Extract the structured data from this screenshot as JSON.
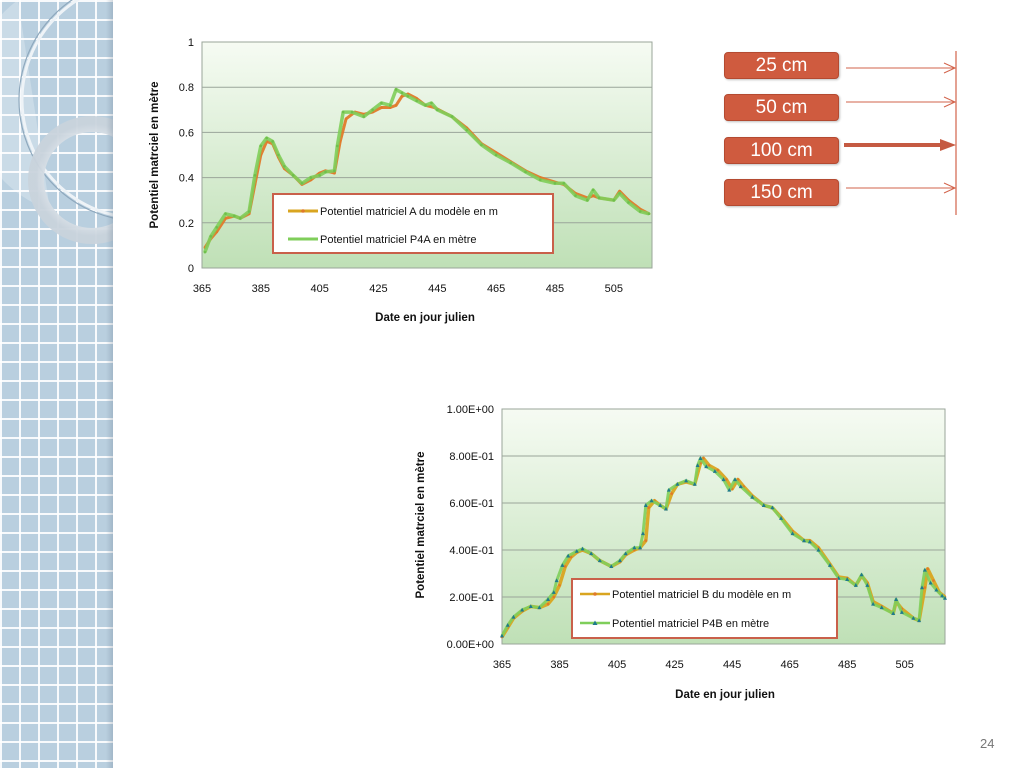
{
  "slide": {
    "page_number": "24",
    "accent_color": "#cf5b3f"
  },
  "depth_labels": [
    "25 cm",
    "50 cm",
    "100 cm",
    "150 cm"
  ],
  "highlighted_depth": "100 cm",
  "chart_data": [
    {
      "type": "line",
      "title": "",
      "xlabel": "Date en jour julien",
      "ylabel": "Potentiel matrciel en mètre",
      "xlim": [
        365,
        518
      ],
      "ylim": [
        0,
        1
      ],
      "xticks": [
        365,
        385,
        405,
        425,
        445,
        465,
        485,
        505
      ],
      "xtick_labels": [
        "365",
        "385",
        "405",
        "425",
        "445",
        "465",
        "485",
        "505"
      ],
      "yticks": [
        0,
        0.2,
        0.4,
        0.6,
        0.8,
        1
      ],
      "ytick_labels": [
        "0",
        "0.2",
        "0.4",
        "0.6",
        "0.8",
        "1"
      ],
      "grid": true,
      "legend_position": "center-bottom",
      "series": [
        {
          "name": "Potentiel matriciel A du modèle en m",
          "color": "#e07a2a",
          "x": [
            366,
            368,
            370,
            373,
            376,
            378,
            381,
            383,
            385,
            387,
            389,
            391,
            393,
            396,
            399,
            402,
            405,
            407,
            410,
            412,
            414,
            417,
            420,
            423,
            426,
            429,
            431,
            433,
            435,
            438,
            441,
            444,
            447,
            450,
            455,
            460,
            465,
            470,
            475,
            480,
            485,
            488,
            492,
            496,
            498,
            500,
            505,
            507,
            510,
            514,
            517
          ],
          "y": [
            0.09,
            0.13,
            0.16,
            0.22,
            0.23,
            0.22,
            0.24,
            0.37,
            0.5,
            0.56,
            0.55,
            0.49,
            0.44,
            0.41,
            0.37,
            0.39,
            0.42,
            0.43,
            0.42,
            0.56,
            0.66,
            0.69,
            0.68,
            0.69,
            0.71,
            0.71,
            0.72,
            0.76,
            0.77,
            0.75,
            0.72,
            0.71,
            0.69,
            0.67,
            0.62,
            0.55,
            0.51,
            0.47,
            0.43,
            0.4,
            0.38,
            0.37,
            0.33,
            0.31,
            0.32,
            0.31,
            0.3,
            0.34,
            0.3,
            0.26,
            0.24
          ]
        },
        {
          "name": "Potentiel matriciel P4A en mètre",
          "color": "#7fce5a",
          "x": [
            366,
            368,
            370,
            373,
            376,
            378,
            381,
            383,
            385,
            387,
            389,
            391,
            393,
            396,
            399,
            402,
            405,
            407,
            410,
            411,
            413,
            416,
            420,
            423,
            426,
            429,
            431,
            433,
            435,
            438,
            441,
            443,
            445,
            450,
            455,
            460,
            465,
            470,
            475,
            480,
            485,
            488,
            492,
            496,
            498,
            500,
            505,
            507,
            510,
            514,
            517
          ],
          "y": [
            0.07,
            0.14,
            0.18,
            0.24,
            0.23,
            0.22,
            0.25,
            0.41,
            0.54,
            0.575,
            0.56,
            0.5,
            0.45,
            0.41,
            0.375,
            0.4,
            0.41,
            0.425,
            0.43,
            0.54,
            0.69,
            0.69,
            0.67,
            0.7,
            0.73,
            0.72,
            0.79,
            0.775,
            0.76,
            0.74,
            0.72,
            0.73,
            0.7,
            0.67,
            0.61,
            0.545,
            0.5,
            0.465,
            0.425,
            0.39,
            0.375,
            0.375,
            0.32,
            0.3,
            0.345,
            0.31,
            0.3,
            0.33,
            0.29,
            0.25,
            0.24
          ]
        }
      ]
    },
    {
      "type": "line",
      "title": "",
      "xlabel": "Date en jour julien",
      "ylabel": "Potentiel matrciel en mètre",
      "xlim": [
        365,
        519
      ],
      "ylim": [
        0,
        1
      ],
      "xticks": [
        365,
        385,
        405,
        425,
        445,
        465,
        485,
        505
      ],
      "xtick_labels": [
        "365",
        "385",
        "405",
        "425",
        "445",
        "465",
        "485",
        "505"
      ],
      "yticks": [
        0,
        0.2,
        0.4,
        0.6,
        0.8,
        1
      ],
      "ytick_labels": [
        "0.00E+00",
        "2.00E-01",
        "4.00E-01",
        "6.00E-01",
        "8.00E-01",
        "1.00E+00"
      ],
      "grid": true,
      "legend_position": "center-bottom",
      "series": [
        {
          "name": "Potentiel matriciel B du modèle en m",
          "color": "#d9a520",
          "marker": "circle",
          "x": [
            365,
            367,
            369,
            372,
            375,
            378,
            381,
            383,
            385,
            387,
            389,
            391,
            393,
            396,
            399,
            403,
            406,
            408,
            411,
            413,
            415,
            416,
            418,
            420,
            422,
            424,
            426,
            429,
            432,
            434,
            435,
            437,
            440,
            443,
            445,
            447,
            449,
            452,
            456,
            459,
            462,
            466,
            470,
            472,
            475,
            479,
            482,
            485,
            488,
            490,
            492,
            494,
            497,
            501,
            502,
            504,
            508,
            510,
            512,
            513,
            515,
            517,
            519
          ],
          "y": [
            0.03,
            0.07,
            0.11,
            0.14,
            0.16,
            0.155,
            0.17,
            0.2,
            0.25,
            0.33,
            0.37,
            0.39,
            0.4,
            0.385,
            0.355,
            0.33,
            0.35,
            0.38,
            0.4,
            0.41,
            0.44,
            0.58,
            0.61,
            0.59,
            0.575,
            0.64,
            0.68,
            0.69,
            0.68,
            0.77,
            0.79,
            0.76,
            0.74,
            0.7,
            0.66,
            0.7,
            0.67,
            0.63,
            0.59,
            0.58,
            0.54,
            0.48,
            0.44,
            0.44,
            0.41,
            0.34,
            0.285,
            0.28,
            0.25,
            0.29,
            0.26,
            0.18,
            0.16,
            0.13,
            0.18,
            0.15,
            0.11,
            0.1,
            0.24,
            0.32,
            0.27,
            0.22,
            0.2
          ]
        },
        {
          "name": "Potentiel matriciel P4B en mètre",
          "color": "#7fce5a",
          "marker": "triangle",
          "x": [
            365,
            367,
            369,
            372,
            375,
            378,
            381,
            383,
            384,
            386,
            388,
            391,
            393,
            396,
            399,
            403,
            406,
            408,
            411,
            413,
            414,
            415,
            417,
            420,
            422,
            423,
            426,
            429,
            432,
            433,
            434,
            436,
            439,
            442,
            444,
            446,
            448,
            452,
            456,
            459,
            462,
            466,
            470,
            472,
            475,
            479,
            482,
            485,
            488,
            490,
            492,
            494,
            497,
            501,
            502,
            504,
            508,
            510,
            511,
            512,
            514,
            516,
            518,
            519
          ],
          "y": [
            0.035,
            0.08,
            0.115,
            0.145,
            0.16,
            0.155,
            0.19,
            0.22,
            0.27,
            0.335,
            0.375,
            0.395,
            0.405,
            0.385,
            0.355,
            0.33,
            0.355,
            0.385,
            0.41,
            0.41,
            0.47,
            0.59,
            0.61,
            0.59,
            0.575,
            0.655,
            0.68,
            0.695,
            0.68,
            0.76,
            0.79,
            0.755,
            0.735,
            0.7,
            0.655,
            0.7,
            0.67,
            0.625,
            0.59,
            0.58,
            0.535,
            0.47,
            0.44,
            0.435,
            0.4,
            0.335,
            0.28,
            0.275,
            0.25,
            0.295,
            0.25,
            0.17,
            0.155,
            0.13,
            0.19,
            0.135,
            0.11,
            0.1,
            0.24,
            0.315,
            0.26,
            0.23,
            0.205,
            0.195
          ]
        }
      ]
    }
  ]
}
